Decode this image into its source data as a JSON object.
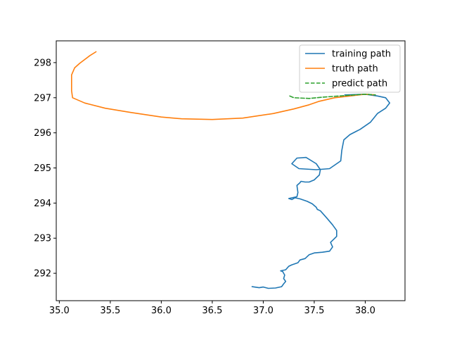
{
  "chart_data": {
    "type": "line",
    "title": "",
    "xlabel": "",
    "ylabel": "",
    "xlim": [
      34.97,
      38.39
    ],
    "ylim": [
      291.22,
      298.62
    ],
    "xticks": [
      35.0,
      35.5,
      36.0,
      36.5,
      37.0,
      37.5,
      38.0
    ],
    "yticks": [
      292,
      293,
      294,
      295,
      296,
      297,
      298
    ],
    "xtick_labels": [
      "35.0",
      "35.5",
      "36.0",
      "36.5",
      "37.0",
      "37.5",
      "38.0"
    ],
    "ytick_labels": [
      "292",
      "293",
      "294",
      "295",
      "296",
      "297",
      "298"
    ],
    "grid": false,
    "legend": {
      "placement": "top-right",
      "entries": [
        "training path",
        "truth path",
        "predict path"
      ]
    },
    "series": [
      {
        "name": "training path",
        "color": "#1f77b4",
        "style": "solid",
        "points": [
          [
            36.89,
            291.62
          ],
          [
            36.96,
            291.59
          ],
          [
            37.0,
            291.61
          ],
          [
            37.05,
            291.57
          ],
          [
            37.12,
            291.58
          ],
          [
            37.18,
            291.62
          ],
          [
            37.2,
            291.7
          ],
          [
            37.22,
            291.77
          ],
          [
            37.2,
            291.85
          ],
          [
            37.21,
            291.95
          ],
          [
            37.19,
            292.05
          ],
          [
            37.17,
            292.07
          ],
          [
            37.22,
            292.1
          ],
          [
            37.25,
            292.2
          ],
          [
            37.28,
            292.24
          ],
          [
            37.34,
            292.3
          ],
          [
            37.36,
            292.38
          ],
          [
            37.41,
            292.42
          ],
          [
            37.45,
            292.53
          ],
          [
            37.5,
            292.58
          ],
          [
            37.58,
            292.6
          ],
          [
            37.65,
            292.63
          ],
          [
            37.68,
            292.75
          ],
          [
            37.66,
            292.88
          ],
          [
            37.72,
            293.05
          ],
          [
            37.72,
            293.22
          ],
          [
            37.68,
            293.38
          ],
          [
            37.63,
            293.55
          ],
          [
            37.6,
            293.65
          ],
          [
            37.56,
            293.78
          ],
          [
            37.53,
            293.82
          ],
          [
            37.52,
            293.88
          ],
          [
            37.48,
            293.98
          ],
          [
            37.43,
            294.05
          ],
          [
            37.36,
            294.12
          ],
          [
            37.31,
            294.15
          ],
          [
            37.28,
            294.1
          ],
          [
            37.25,
            294.13
          ],
          [
            37.33,
            294.18
          ],
          [
            37.34,
            294.3
          ],
          [
            37.33,
            294.5
          ],
          [
            37.36,
            294.58
          ],
          [
            37.37,
            294.62
          ],
          [
            37.41,
            294.6
          ],
          [
            37.45,
            294.6
          ],
          [
            37.5,
            294.66
          ],
          [
            37.55,
            294.8
          ],
          [
            37.56,
            294.95
          ],
          [
            37.52,
            295.12
          ],
          [
            37.42,
            295.3
          ],
          [
            37.33,
            295.28
          ],
          [
            37.28,
            295.12
          ],
          [
            37.35,
            294.98
          ],
          [
            37.52,
            294.95
          ],
          [
            37.65,
            294.98
          ],
          [
            37.76,
            295.2
          ],
          [
            37.77,
            295.5
          ],
          [
            37.79,
            295.8
          ],
          [
            37.85,
            295.95
          ],
          [
            37.95,
            296.1
          ],
          [
            38.05,
            296.3
          ],
          [
            38.12,
            296.55
          ],
          [
            38.2,
            296.7
          ],
          [
            38.24,
            296.85
          ],
          [
            38.2,
            297.0
          ],
          [
            38.12,
            297.05
          ],
          [
            38.0,
            297.1
          ],
          [
            37.8,
            297.08
          ]
        ]
      },
      {
        "name": "truth path",
        "color": "#ff7f0e",
        "style": "solid",
        "points": [
          [
            35.36,
            298.31
          ],
          [
            35.3,
            298.2
          ],
          [
            35.2,
            297.98
          ],
          [
            35.15,
            297.85
          ],
          [
            35.12,
            297.65
          ],
          [
            35.12,
            297.2
          ],
          [
            35.13,
            297.0
          ],
          [
            35.25,
            296.85
          ],
          [
            35.45,
            296.7
          ],
          [
            35.7,
            296.58
          ],
          [
            36.0,
            296.45
          ],
          [
            36.2,
            296.4
          ],
          [
            36.5,
            296.38
          ],
          [
            36.8,
            296.42
          ],
          [
            37.1,
            296.55
          ],
          [
            37.3,
            296.68
          ],
          [
            37.45,
            296.8
          ],
          [
            37.55,
            296.9
          ],
          [
            37.7,
            297.0
          ],
          [
            37.85,
            297.05
          ],
          [
            38.0,
            297.1
          ],
          [
            38.1,
            297.08
          ]
        ]
      },
      {
        "name": "predict path",
        "color": "#2ca02c",
        "style": "dashed",
        "points": [
          [
            37.26,
            297.05
          ],
          [
            37.3,
            297.0
          ],
          [
            37.45,
            296.98
          ],
          [
            37.6,
            297.02
          ],
          [
            37.8,
            297.06
          ],
          [
            38.0,
            297.1
          ],
          [
            38.1,
            297.08
          ]
        ]
      }
    ]
  }
}
